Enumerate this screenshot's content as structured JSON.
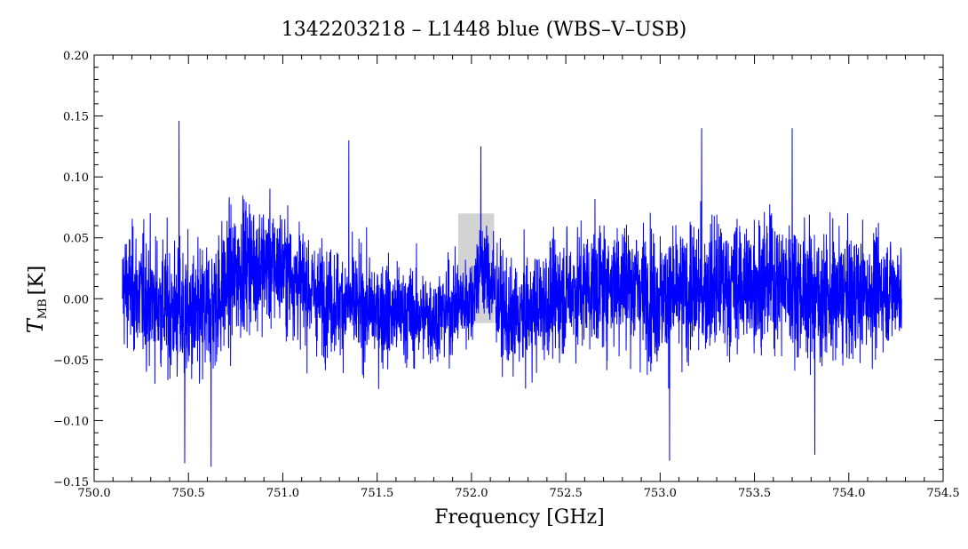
{
  "chart_data": {
    "type": "line",
    "title": "1342203218 – L1448 blue (WBS–V–USB)",
    "xlabel": "Frequency [GHz]",
    "ylabel": {
      "symbol": "T",
      "subscript": "MB",
      "unit": "[K]"
    },
    "xlim": [
      750.0,
      754.5
    ],
    "ylim": [
      -0.15,
      0.2
    ],
    "xticks": [
      750.0,
      750.5,
      751.0,
      751.5,
      752.0,
      752.5,
      753.0,
      753.5,
      754.0,
      754.5
    ],
    "xtick_labels": [
      "750.0",
      "750.5",
      "751.0",
      "751.5",
      "752.0",
      "752.5",
      "753.0",
      "753.5",
      "754.0",
      "754.5"
    ],
    "yticks": [
      -0.15,
      -0.1,
      -0.05,
      0.0,
      0.05,
      0.1,
      0.15,
      0.2
    ],
    "ytick_labels": [
      "−0.15",
      "−0.10",
      "−0.05",
      "0.00",
      "0.05",
      "0.10",
      "0.15",
      "0.20"
    ],
    "grid": false,
    "series": [
      {
        "color": "#0000ff",
        "x_range": [
          750.15,
          754.28
        ],
        "noise_rms_K": 0.035,
        "y_min": -0.138,
        "y_max": 0.146,
        "points": [
          {
            "x": 750.15,
            "y": 0.0
          },
          {
            "x": 750.45,
            "y": 0.146
          },
          {
            "x": 750.48,
            "y": -0.135
          },
          {
            "x": 750.62,
            "y": -0.138
          },
          {
            "x": 751.35,
            "y": 0.13
          },
          {
            "x": 752.05,
            "y": 0.125
          },
          {
            "x": 752.08,
            "y": 0.06
          },
          {
            "x": 753.05,
            "y": -0.133
          },
          {
            "x": 753.22,
            "y": 0.14
          },
          {
            "x": 753.7,
            "y": 0.14
          },
          {
            "x": 753.82,
            "y": -0.128
          },
          {
            "x": 754.28,
            "y": 0.0
          }
        ]
      }
    ],
    "highlight_band": {
      "x_range": [
        751.93,
        752.12
      ],
      "color": "#c8c8c8"
    },
    "noise_structure": {
      "x": [
        750.15,
        750.35,
        750.55,
        750.8,
        751.0,
        751.2,
        751.5,
        751.8,
        752.0,
        752.05,
        752.2,
        752.5,
        752.8,
        753.0,
        753.3,
        753.6,
        753.9,
        754.1,
        754.28
      ],
      "baseline": [
        0.01,
        -0.005,
        -0.02,
        0.03,
        0.025,
        0.0,
        -0.01,
        -0.015,
        0.0,
        0.03,
        -0.02,
        0.005,
        0.015,
        0.0,
        0.01,
        0.015,
        0.0,
        0.005,
        0.01
      ],
      "amplitude": [
        0.045,
        0.05,
        0.055,
        0.05,
        0.045,
        0.04,
        0.04,
        0.035,
        0.035,
        0.04,
        0.04,
        0.045,
        0.05,
        0.05,
        0.05,
        0.05,
        0.05,
        0.045,
        0.04
      ]
    }
  }
}
